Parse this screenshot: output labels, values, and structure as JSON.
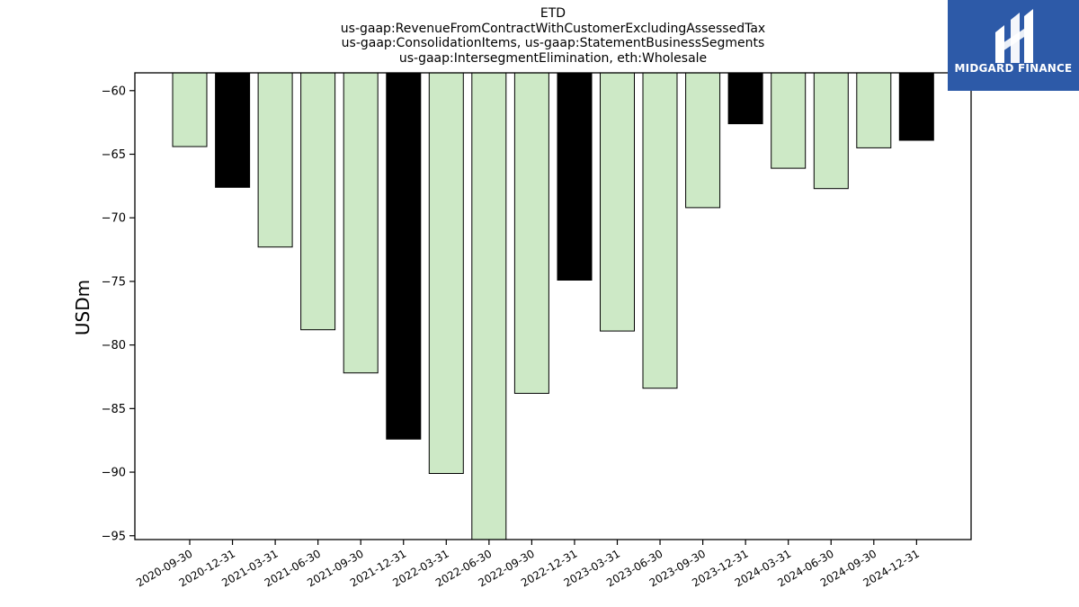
{
  "chart_data": {
    "type": "bar",
    "title_lines": [
      "ETD",
      "us-gaap:RevenueFromContractWithCustomerExcludingAssessedTax",
      "us-gaap:ConsolidationItems, us-gaap:StatementBusinessSegments",
      "us-gaap:IntersegmentElimination, eth:Wholesale"
    ],
    "ylabel": "USDm",
    "xlabel": "",
    "ylim": [
      -95.3,
      -58.6
    ],
    "yticks": [
      -60,
      -65,
      -70,
      -75,
      -80,
      -85,
      -90,
      -95
    ],
    "categories": [
      "2020-09-30",
      "2020-12-31",
      "2021-03-31",
      "2021-06-30",
      "2021-09-30",
      "2021-12-31",
      "2022-03-31",
      "2022-06-30",
      "2022-09-30",
      "2022-12-31",
      "2023-03-31",
      "2023-06-30",
      "2023-09-30",
      "2023-12-31",
      "2024-03-31",
      "2024-06-30",
      "2024-09-30",
      "2024-12-31"
    ],
    "values": [
      -64.4,
      -67.6,
      -72.3,
      -78.8,
      -82.2,
      -87.4,
      -90.1,
      -95.4,
      -83.8,
      -74.9,
      -78.9,
      -83.4,
      -69.2,
      -62.6,
      -66.1,
      -67.7,
      -64.5,
      -63.9
    ],
    "bar_colors": [
      "#cde9c6",
      "#000000",
      "#cde9c6",
      "#cde9c6",
      "#cde9c6",
      "#000000",
      "#cde9c6",
      "#cde9c6",
      "#cde9c6",
      "#000000",
      "#cde9c6",
      "#cde9c6",
      "#cde9c6",
      "#000000",
      "#cde9c6",
      "#cde9c6",
      "#cde9c6",
      "#000000"
    ],
    "grid": false
  },
  "logo": {
    "text": "MIDGARD FINANCE",
    "background": "#2d5aa8"
  }
}
